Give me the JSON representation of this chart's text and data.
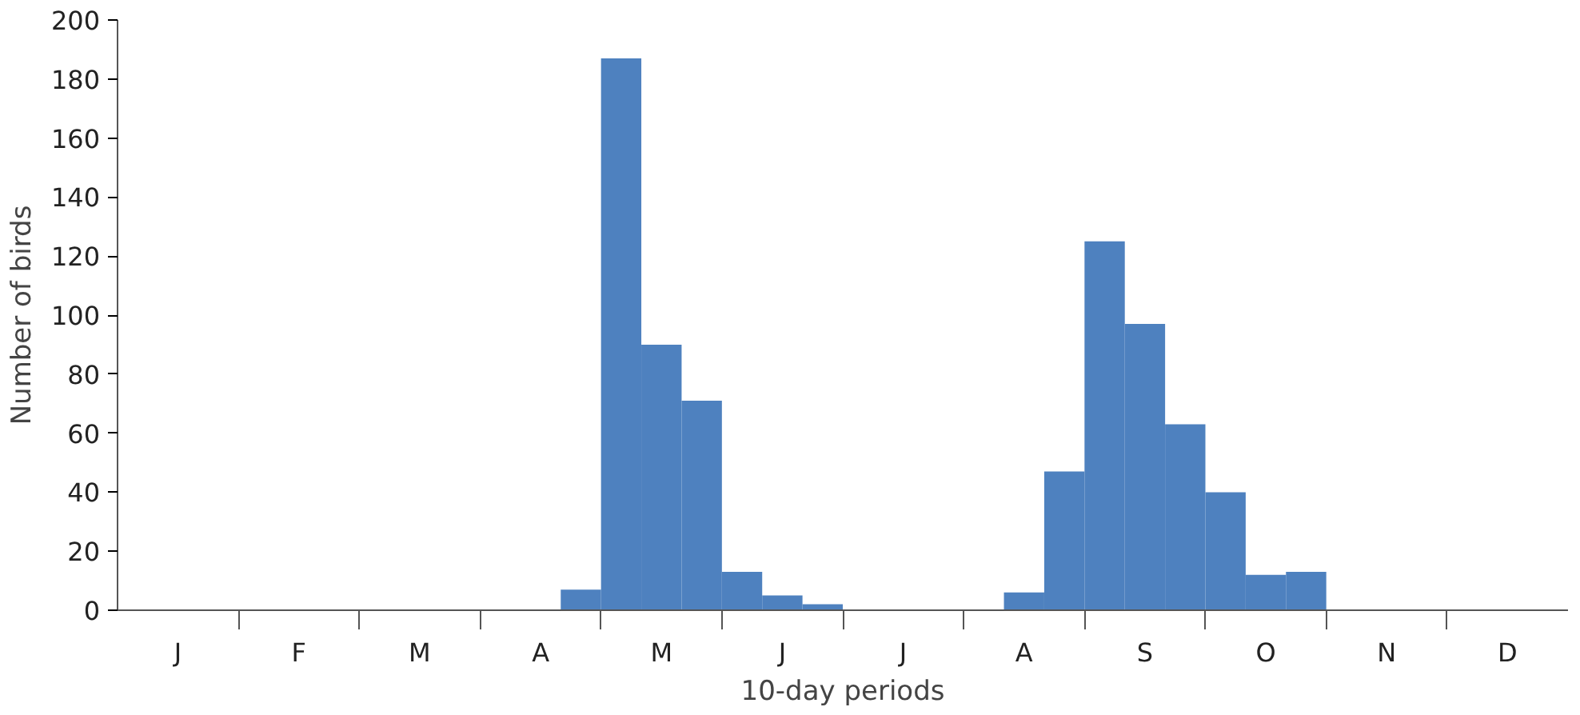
{
  "chart_data": {
    "type": "bar",
    "xlabel": "10-day periods",
    "ylabel": "Number of birds",
    "categories": [
      null,
      "J",
      null,
      null,
      "F",
      null,
      null,
      "M",
      null,
      null,
      "A",
      null,
      null,
      "M",
      null,
      null,
      "J",
      null,
      null,
      "J",
      null,
      null,
      "A",
      null,
      null,
      "S",
      null,
      null,
      "O",
      null,
      null,
      "N",
      null,
      null,
      "D",
      null
    ],
    "values": [
      0,
      0,
      0,
      0,
      0,
      0,
      0,
      0,
      0,
      0,
      0,
      7,
      187,
      90,
      71,
      13,
      5,
      2,
      0,
      0,
      0,
      0,
      6,
      47,
      125,
      97,
      63,
      40,
      12,
      13,
      0,
      0,
      0,
      0,
      0,
      0
    ],
    "color": "#4e81bf",
    "ylim": [
      0,
      200
    ],
    "yticks": [
      0,
      20,
      40,
      60,
      80,
      100,
      120,
      140,
      160,
      180,
      200
    ],
    "grid": false
  }
}
